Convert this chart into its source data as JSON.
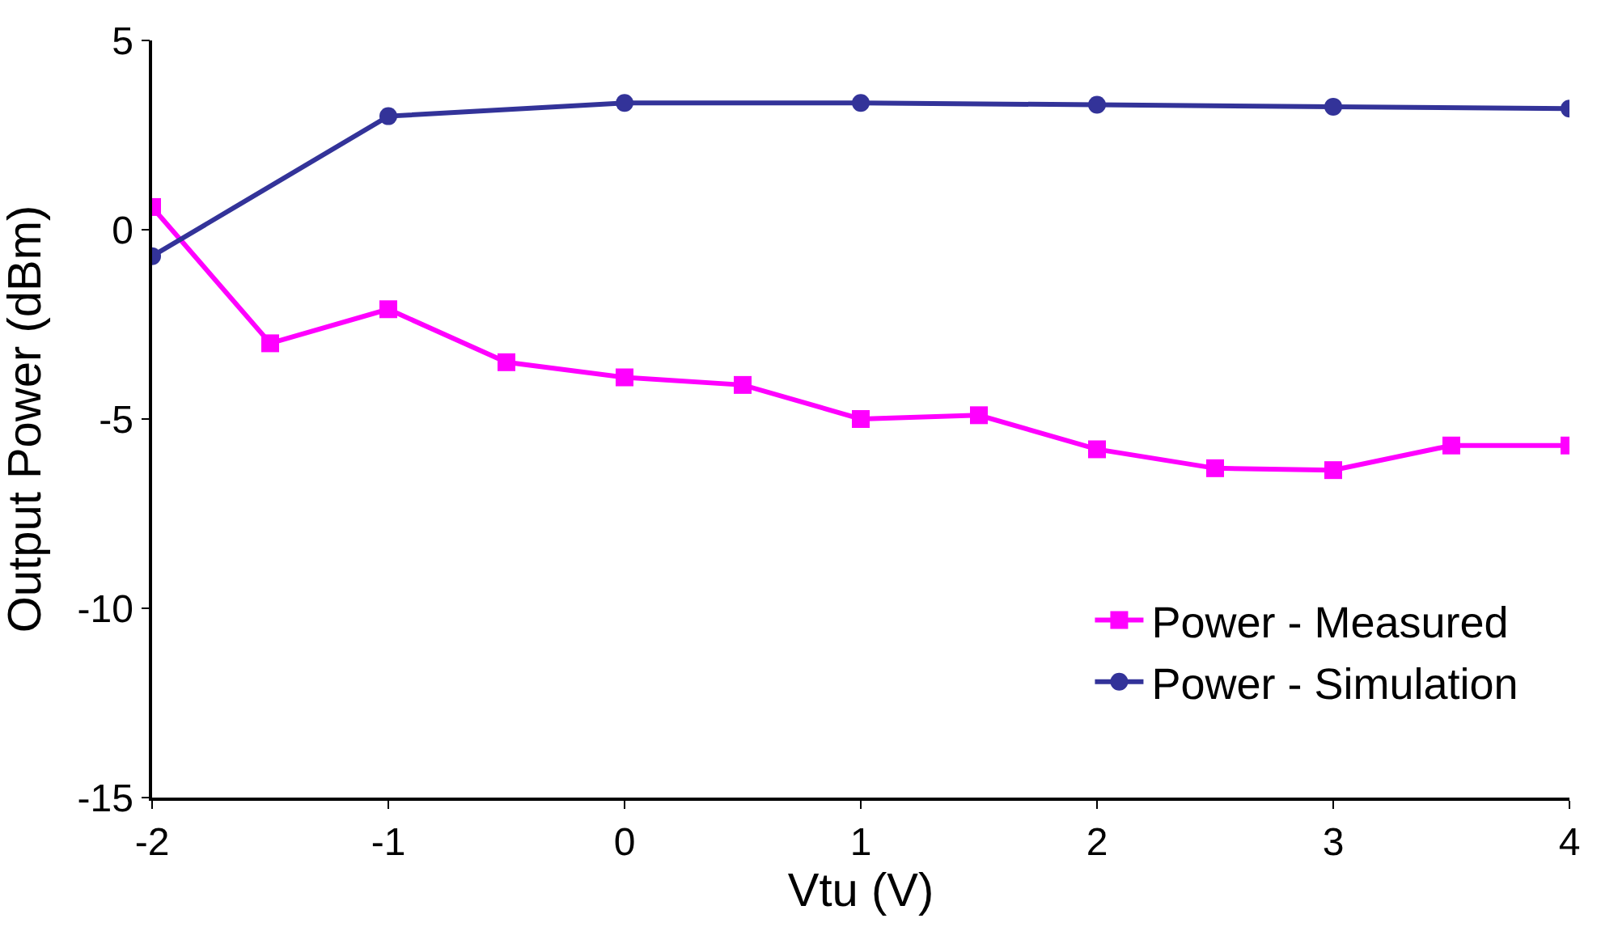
{
  "chart_data": {
    "type": "line",
    "xlabel": "Vtu (V)",
    "ylabel": "Output Power (dBm)",
    "xlim": [
      -2,
      4
    ],
    "xticks": [
      -2,
      -1,
      0,
      1,
      2,
      3,
      4
    ],
    "ylim": [
      -15,
      5
    ],
    "yticks": [
      -15,
      -10,
      -5,
      0,
      5
    ],
    "legend": "bottom right",
    "series": [
      {
        "name": "Power - Measured",
        "color": "#ff00ff",
        "marker": "square",
        "x": [
          -2,
          -1.5,
          -1,
          -0.5,
          0,
          0.5,
          1,
          1.5,
          2,
          2.5,
          3,
          3.5,
          4
        ],
        "values": [
          0.6,
          -3.0,
          -2.1,
          -3.5,
          -3.9,
          -4.1,
          -5.0,
          -4.9,
          -5.8,
          -6.3,
          -6.35,
          -5.7,
          -5.7
        ]
      },
      {
        "name": "Power - Simulation",
        "color": "#333399",
        "marker": "circle",
        "x": [
          -2,
          -1,
          0,
          1,
          2,
          3,
          4
        ],
        "values": [
          -0.7,
          3.0,
          3.35,
          3.35,
          3.3,
          3.25,
          3.2
        ]
      }
    ]
  }
}
